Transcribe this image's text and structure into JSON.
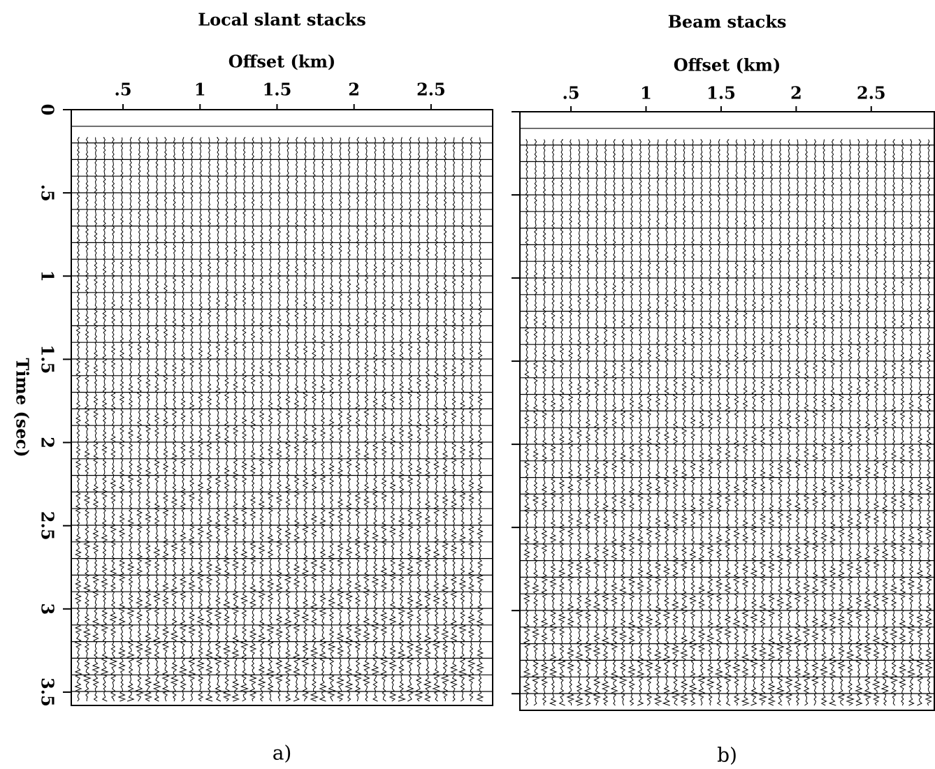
{
  "chart_data": [
    {
      "type": "wiggle",
      "title": "Local slant stacks",
      "xlabel": "Offset (km)",
      "ylabel": "Time (sec)",
      "caption": "a)",
      "xlim": [
        0.164,
        2.9
      ],
      "xticks": [
        {
          "value": 0.5,
          "label": ".5"
        },
        1,
        1.5,
        2,
        2.5
      ],
      "ylim": [
        0,
        3.58
      ],
      "yticks": [
        0,
        {
          "value": 0.5,
          "label": ".5"
        },
        1,
        1.5,
        2,
        2.5,
        3,
        3.5
      ]
    },
    {
      "type": "wiggle",
      "title": "Beam stacks",
      "xlabel": "Offset (km)",
      "caption": "b)",
      "xlim": [
        0.16,
        2.92
      ],
      "xticks": [
        {
          "value": 0.5,
          "label": ".5"
        },
        1,
        1.5,
        2,
        2.5
      ],
      "ylim": [
        0,
        3.6
      ],
      "yticks": [
        0,
        0.5,
        1,
        1.5,
        2,
        2.5,
        3,
        3.5
      ]
    }
  ]
}
